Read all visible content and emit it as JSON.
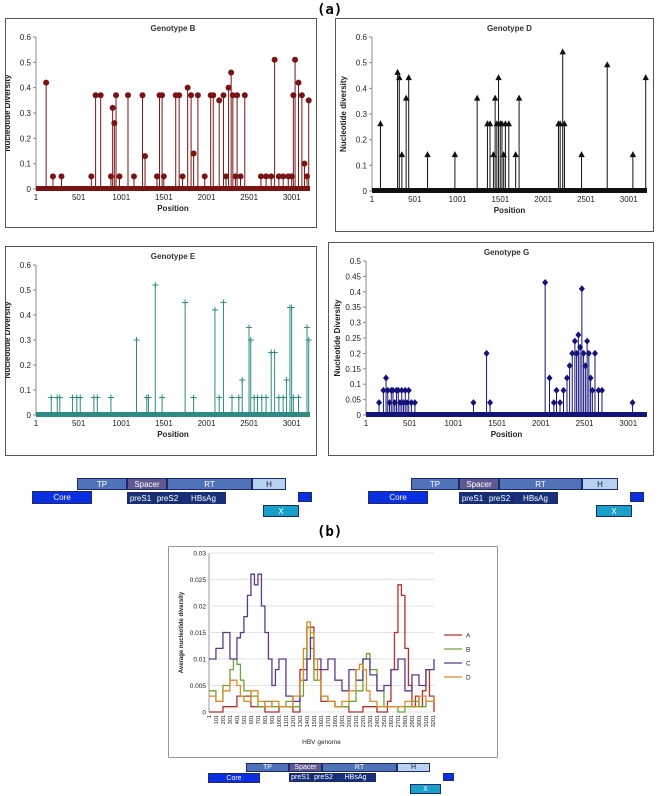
{
  "labels": {
    "a": "(a)",
    "b": "(b)"
  },
  "genome_map": {
    "tp": "TP",
    "spacer": "Spacer",
    "rt": "RT",
    "h": "H",
    "core": "Core",
    "pres1": "preS1",
    "pres2": "preS2",
    "hbsag": "HBsAg",
    "x": "X"
  },
  "chart_data": [
    {
      "type": "scatter",
      "title": "Genotype B",
      "xlabel": "Position",
      "ylabel": "Nucleotide Diversity",
      "xticks": [
        "1",
        "501",
        "1001",
        "1501",
        "2001",
        "2501",
        "3001"
      ],
      "yticks": [
        "0",
        "0.1",
        "0.2",
        "0.3",
        "0.4",
        "0.5",
        "0.6"
      ],
      "xlim": [
        1,
        3215
      ],
      "ylim": [
        0,
        0.6
      ],
      "color": "#7a1414",
      "marker": "circle",
      "x": [
        120,
        200,
        300,
        650,
        700,
        760,
        880,
        900,
        920,
        940,
        980,
        1080,
        1150,
        1250,
        1280,
        1420,
        1450,
        1480,
        1500,
        1640,
        1680,
        1720,
        1780,
        1820,
        1850,
        1900,
        1980,
        2050,
        2080,
        2150,
        2200,
        2230,
        2260,
        2290,
        2310,
        2340,
        2360,
        2400,
        2450,
        2640,
        2700,
        2760,
        2800,
        2850,
        2900,
        2960,
        3000,
        3020,
        3040,
        3080,
        3120,
        3150,
        3180,
        3200
      ],
      "y": [
        0.42,
        0.05,
        0.05,
        0.05,
        0.37,
        0.37,
        0.05,
        0.32,
        0.26,
        0.37,
        0.05,
        0.37,
        0.05,
        0.37,
        0.13,
        0.05,
        0.37,
        0.37,
        0.05,
        0.37,
        0.37,
        0.05,
        0.4,
        0.37,
        0.14,
        0.37,
        0.05,
        0.37,
        0.37,
        0.35,
        0.37,
        0.05,
        0.4,
        0.46,
        0.37,
        0.05,
        0.37,
        0.05,
        0.37,
        0.05,
        0.05,
        0.05,
        0.51,
        0.05,
        0.05,
        0.05,
        0.05,
        0.37,
        0.51,
        0.42,
        0.37,
        0.1,
        0.05,
        0.35
      ]
    },
    {
      "type": "scatter",
      "title": "Genotype D",
      "xlabel": "Position",
      "ylabel": "Nucleotide diversity",
      "xticks": [
        "1",
        "501",
        "1001",
        "1501",
        "2001",
        "2501",
        "3001"
      ],
      "yticks": [
        "0",
        "0.1",
        "0.2",
        "0.3",
        "0.4",
        "0.5",
        "0.6"
      ],
      "xlim": [
        1,
        3215
      ],
      "ylim": [
        0,
        0.6
      ],
      "color": "#111111",
      "marker": "triangle",
      "x": [
        100,
        300,
        320,
        350,
        400,
        430,
        650,
        970,
        1230,
        1350,
        1380,
        1420,
        1440,
        1460,
        1480,
        1500,
        1520,
        1540,
        1560,
        1600,
        1680,
        1720,
        2180,
        2200,
        2230,
        2250,
        2450,
        2750,
        3050,
        3200
      ],
      "y": [
        0.26,
        0.46,
        0.44,
        0.14,
        0.36,
        0.44,
        0.14,
        0.14,
        0.36,
        0.26,
        0.26,
        0.14,
        0.36,
        0.26,
        0.44,
        0.26,
        0.26,
        0.14,
        0.26,
        0.26,
        0.14,
        0.36,
        0.26,
        0.26,
        0.54,
        0.26,
        0.14,
        0.49,
        0.14,
        0.44
      ]
    },
    {
      "type": "scatter",
      "title": "Genotype E",
      "xlabel": "Position",
      "ylabel": "Nucleotide Diversity",
      "xticks": [
        "1",
        "501",
        "1001",
        "1501",
        "2001",
        "2501",
        "3001"
      ],
      "yticks": [
        "0",
        "0.1",
        "0.2",
        "0.3",
        "0.4",
        "0.5",
        "0.6"
      ],
      "xlim": [
        1,
        3215
      ],
      "ylim": [
        0,
        0.6
      ],
      "color": "#2e8b84",
      "marker": "plus",
      "x": [
        180,
        250,
        280,
        430,
        480,
        520,
        680,
        720,
        880,
        1180,
        1300,
        1320,
        1400,
        1480,
        1750,
        1850,
        2100,
        2150,
        2200,
        2300,
        2380,
        2420,
        2500,
        2520,
        2560,
        2600,
        2650,
        2700,
        2760,
        2800,
        2850,
        2900,
        2940,
        2980,
        3000,
        3020,
        3080,
        3180,
        3200
      ],
      "y": [
        0.07,
        0.07,
        0.07,
        0.07,
        0.07,
        0.07,
        0.07,
        0.07,
        0.07,
        0.3,
        0.07,
        0.07,
        0.52,
        0.07,
        0.45,
        0.07,
        0.42,
        0.07,
        0.45,
        0.07,
        0.07,
        0.14,
        0.35,
        0.3,
        0.07,
        0.07,
        0.07,
        0.07,
        0.25,
        0.25,
        0.07,
        0.07,
        0.14,
        0.43,
        0.43,
        0.07,
        0.07,
        0.35,
        0.3
      ]
    },
    {
      "type": "scatter",
      "title": "Genotype G",
      "xlabel": "Position",
      "ylabel": "Nucleotide Diversity",
      "xticks": [
        "1",
        "501",
        "1001",
        "1501",
        "2001",
        "2501",
        "3001"
      ],
      "yticks": [
        "0",
        "0.05",
        "0.1",
        "0.15",
        "0.2",
        "0.25",
        "0.3",
        "0.35",
        "0.4",
        "0.45",
        "0.5"
      ],
      "xlim": [
        1,
        3215
      ],
      "ylim": [
        0,
        0.5
      ],
      "color": "#13137a",
      "marker": "diamond",
      "x": [
        150,
        200,
        230,
        250,
        270,
        290,
        310,
        330,
        350,
        370,
        390,
        410,
        430,
        450,
        470,
        490,
        520,
        560,
        1230,
        1380,
        1420,
        2050,
        2100,
        2150,
        2180,
        2220,
        2260,
        2300,
        2330,
        2360,
        2390,
        2410,
        2430,
        2450,
        2470,
        2490,
        2510,
        2530,
        2550,
        2570,
        2590,
        2620,
        2660,
        2700,
        3050
      ],
      "y": [
        0.04,
        0.08,
        0.12,
        0.08,
        0.04,
        0.08,
        0.08,
        0.04,
        0.08,
        0.08,
        0.04,
        0.08,
        0.04,
        0.08,
        0.04,
        0.08,
        0.04,
        0.04,
        0.04,
        0.2,
        0.04,
        0.43,
        0.12,
        0.04,
        0.08,
        0.04,
        0.08,
        0.12,
        0.16,
        0.2,
        0.24,
        0.2,
        0.26,
        0.22,
        0.41,
        0.2,
        0.16,
        0.24,
        0.2,
        0.12,
        0.08,
        0.2,
        0.08,
        0.08,
        0.04
      ]
    },
    {
      "type": "line",
      "title": "",
      "xlabel": "HBV genome",
      "ylabel": "Average nucleotide diversity",
      "xticks": [
        "1",
        "101",
        "201",
        "301",
        "401",
        "501",
        "601",
        "701",
        "801",
        "901",
        "1001",
        "1101",
        "1201",
        "1301",
        "1401",
        "1501",
        "1601",
        "1701",
        "1801",
        "1901",
        "2001",
        "2101",
        "2201",
        "2301",
        "2401",
        "2501",
        "2601",
        "2701",
        "2801",
        "2901",
        "3001",
        "3101",
        "3201"
      ],
      "yticks": [
        "0",
        "0.005",
        "0.01",
        "0.015",
        "0.02",
        "0.025",
        "0.03"
      ],
      "xlim": [
        1,
        3215
      ],
      "ylim": [
        0,
        0.03
      ],
      "legend_position": "right",
      "series": [
        {
          "name": "A",
          "color": "#b3302c",
          "x": [
            1,
            200,
            400,
            600,
            800,
            1000,
            1200,
            1300,
            1400,
            1500,
            1600,
            1800,
            2000,
            2200,
            2400,
            2550,
            2600,
            2650,
            2700,
            2750,
            2800,
            2850,
            2900,
            2950,
            3000,
            3050,
            3100,
            3150,
            3215
          ],
          "y": [
            0.0,
            0.001,
            0.003,
            0.001,
            0.0,
            0.001,
            0.0,
            0.008,
            0.016,
            0.008,
            0.002,
            0.001,
            0.0,
            0.001,
            0.0,
            0.002,
            0.008,
            0.015,
            0.024,
            0.022,
            0.012,
            0.005,
            0.001,
            0.003,
            0.001,
            0.004,
            0.008,
            0.003,
            0.0
          ]
        },
        {
          "name": "B",
          "color": "#6aa33a",
          "x": [
            1,
            100,
            200,
            300,
            350,
            400,
            450,
            500,
            600,
            700,
            800,
            900,
            1000,
            1100,
            1200,
            1300,
            1350,
            1400,
            1450,
            1500,
            1600,
            1700,
            1800,
            1900,
            2000,
            2100,
            2200,
            2250,
            2300,
            2400,
            2500,
            2600,
            2700,
            2800,
            2900,
            3000,
            3100,
            3215
          ],
          "y": [
            0.004,
            0.002,
            0.005,
            0.008,
            0.01,
            0.009,
            0.006,
            0.004,
            0.003,
            0.001,
            0.002,
            0.001,
            0.001,
            0.002,
            0.001,
            0.003,
            0.01,
            0.016,
            0.012,
            0.006,
            0.003,
            0.002,
            0.001,
            0.001,
            0.002,
            0.004,
            0.01,
            0.011,
            0.008,
            0.004,
            0.001,
            0.001,
            0.0,
            0.001,
            0.002,
            0.001,
            0.002,
            0.003
          ]
        },
        {
          "name": "C",
          "color": "#5b3a8c",
          "x": [
            1,
            100,
            200,
            300,
            400,
            450,
            500,
            550,
            600,
            650,
            700,
            750,
            800,
            850,
            900,
            950,
            1000,
            1100,
            1200,
            1300,
            1400,
            1450,
            1500,
            1600,
            1700,
            1800,
            1900,
            2000,
            2100,
            2200,
            2300,
            2400,
            2500,
            2600,
            2700,
            2800,
            2900,
            3000,
            3100,
            3215
          ],
          "y": [
            0.01,
            0.012,
            0.015,
            0.01,
            0.014,
            0.015,
            0.018,
            0.022,
            0.026,
            0.024,
            0.026,
            0.02,
            0.015,
            0.01,
            0.005,
            0.008,
            0.01,
            0.003,
            0.002,
            0.006,
            0.01,
            0.014,
            0.01,
            0.008,
            0.01,
            0.006,
            0.004,
            0.008,
            0.006,
            0.01,
            0.007,
            0.004,
            0.005,
            0.008,
            0.01,
            0.004,
            0.007,
            0.005,
            0.008,
            0.01
          ]
        },
        {
          "name": "D",
          "color": "#e08a2c",
          "x": [
            1,
            100,
            200,
            300,
            400,
            450,
            500,
            600,
            700,
            800,
            900,
            1000,
            1100,
            1200,
            1300,
            1350,
            1400,
            1450,
            1500,
            1550,
            1600,
            1700,
            1800,
            1900,
            2000,
            2100,
            2150,
            2200,
            2250,
            2300,
            2400,
            2500,
            2600,
            2700,
            2800,
            2900,
            3000,
            3100,
            3215
          ],
          "y": [
            0.003,
            0.002,
            0.004,
            0.006,
            0.005,
            0.003,
            0.002,
            0.004,
            0.002,
            0.001,
            0.002,
            0.001,
            0.001,
            0.003,
            0.006,
            0.012,
            0.017,
            0.015,
            0.01,
            0.006,
            0.003,
            0.002,
            0.001,
            0.002,
            0.004,
            0.008,
            0.009,
            0.008,
            0.004,
            0.002,
            0.001,
            0.001,
            0.001,
            0.001,
            0.002,
            0.001,
            0.003,
            0.002,
            0.003
          ]
        }
      ]
    }
  ]
}
